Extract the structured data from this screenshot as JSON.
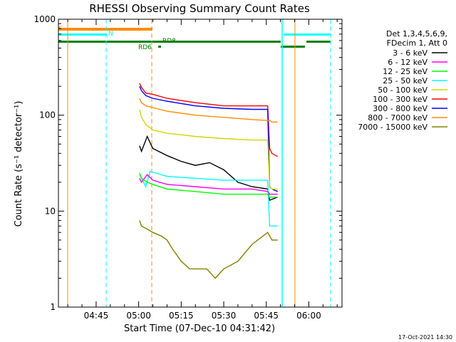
{
  "chart_data": {
    "type": "line",
    "title": "RHESSI Observing Summary Count Rates",
    "xlabel": "Start Time (07-Dec-10 04:31:42)",
    "ylabel": "Count Rate (s⁻¹ detector⁻¹)",
    "yscale": "log",
    "ylim": [
      1,
      1000
    ],
    "y_ticks": [
      "1",
      "10",
      "100",
      "1000"
    ],
    "x_ticks": [
      "04:45",
      "05:00",
      "05:15",
      "05:30",
      "05:45",
      "06:00"
    ],
    "x_tick_minutes": [
      285,
      300,
      315,
      330,
      345,
      360
    ],
    "xlim_minutes": [
      271.7,
      371.7
    ],
    "footer": "17-Oct-2021 14:30",
    "legend": {
      "header": [
        "Det 1,3,4,5,6,9,",
        "FDecim 1, Att 0"
      ],
      "entries": [
        {
          "label": "3 - 6 keV",
          "color": "#000000"
        },
        {
          "label": "6 - 12 keV",
          "color": "#ff00ff"
        },
        {
          "label": "12 - 25 keV",
          "color": "#00ff00"
        },
        {
          "label": "25 - 50 keV",
          "color": "#00ffff"
        },
        {
          "label": "50 - 100 keV",
          "color": "#d4d400"
        },
        {
          "label": "100 - 300 keV",
          "color": "#ff0000"
        },
        {
          "label": "300 - 800 keV",
          "color": "#0000ff"
        },
        {
          "label": "800 - 7000 keV",
          "color": "#ff8c00"
        },
        {
          "label": "7000 - 15000 keV",
          "color": "#808000"
        }
      ]
    },
    "series": [
      {
        "color": "#ff0000",
        "x": [
          300.3,
          301,
          302.5,
          305,
          310,
          320,
          330,
          340,
          345.5,
          346.2,
          347,
          349
        ],
        "y": [
          215,
          195,
          170,
          165,
          150,
          135,
          125,
          125,
          125,
          45,
          40,
          37
        ]
      },
      {
        "color": "#0000ff",
        "x": [
          300.3,
          301,
          302.5,
          305,
          310,
          320,
          330,
          340,
          345.5,
          346.2,
          347,
          349
        ],
        "y": [
          200,
          180,
          160,
          150,
          140,
          125,
          118,
          115,
          115,
          18,
          17,
          16
        ]
      },
      {
        "color": "#ff8c00",
        "x": [
          300.3,
          301,
          302.5,
          305,
          310,
          320,
          330,
          340,
          345.5,
          346.2,
          347,
          349
        ],
        "y": [
          150,
          135,
          125,
          120,
          110,
          100,
          95,
          90,
          88,
          88,
          85,
          85
        ]
      },
      {
        "color": "#d4d400",
        "x": [
          300.3,
          301,
          302.5,
          305,
          310,
          320,
          330,
          340,
          345.5,
          346.2,
          347,
          349
        ],
        "y": [
          115,
          95,
          80,
          70,
          65,
          60,
          57,
          55,
          55,
          18,
          17,
          17
        ]
      },
      {
        "color": "#000000",
        "x": [
          300.3,
          301,
          303,
          305,
          310,
          315,
          320,
          325,
          330,
          335,
          340,
          345.5,
          346.2,
          349
        ],
        "y": [
          48,
          42,
          60,
          45,
          38,
          33,
          30,
          32,
          27,
          20,
          18,
          17,
          13,
          14
        ]
      },
      {
        "color": "#00ffff",
        "x": [
          300.3,
          301,
          302.5,
          304,
          310,
          320,
          330,
          340,
          345.5,
          346.2,
          347,
          349
        ],
        "y": [
          24,
          22,
          18,
          26,
          23,
          22,
          21,
          21,
          21,
          7,
          7,
          7
        ]
      },
      {
        "color": "#ff00ff",
        "x": [
          300.3,
          301,
          303,
          305,
          310,
          320,
          330,
          340,
          345.5,
          346.2,
          347,
          349
        ],
        "y": [
          22,
          20,
          24,
          21,
          19,
          18,
          17,
          17,
          16,
          15,
          15,
          15
        ]
      },
      {
        "color": "#00ff00",
        "x": [
          300.3,
          301,
          303,
          305,
          310,
          320,
          330,
          340,
          345.5,
          346.2,
          347,
          349
        ],
        "y": [
          25,
          22,
          20,
          19,
          17,
          16,
          15,
          15,
          15,
          14,
          14,
          14
        ]
      },
      {
        "color": "#808000",
        "x": [
          300.3,
          301,
          303,
          305,
          308,
          310,
          312,
          315,
          318,
          320,
          324,
          327,
          330,
          335,
          340,
          345.5,
          347,
          349
        ],
        "y": [
          8,
          7,
          6.5,
          6,
          5.5,
          5,
          4,
          3,
          2.5,
          2.5,
          2.5,
          2,
          2.5,
          3,
          4.5,
          6,
          5,
          5
        ]
      }
    ]
  }
}
